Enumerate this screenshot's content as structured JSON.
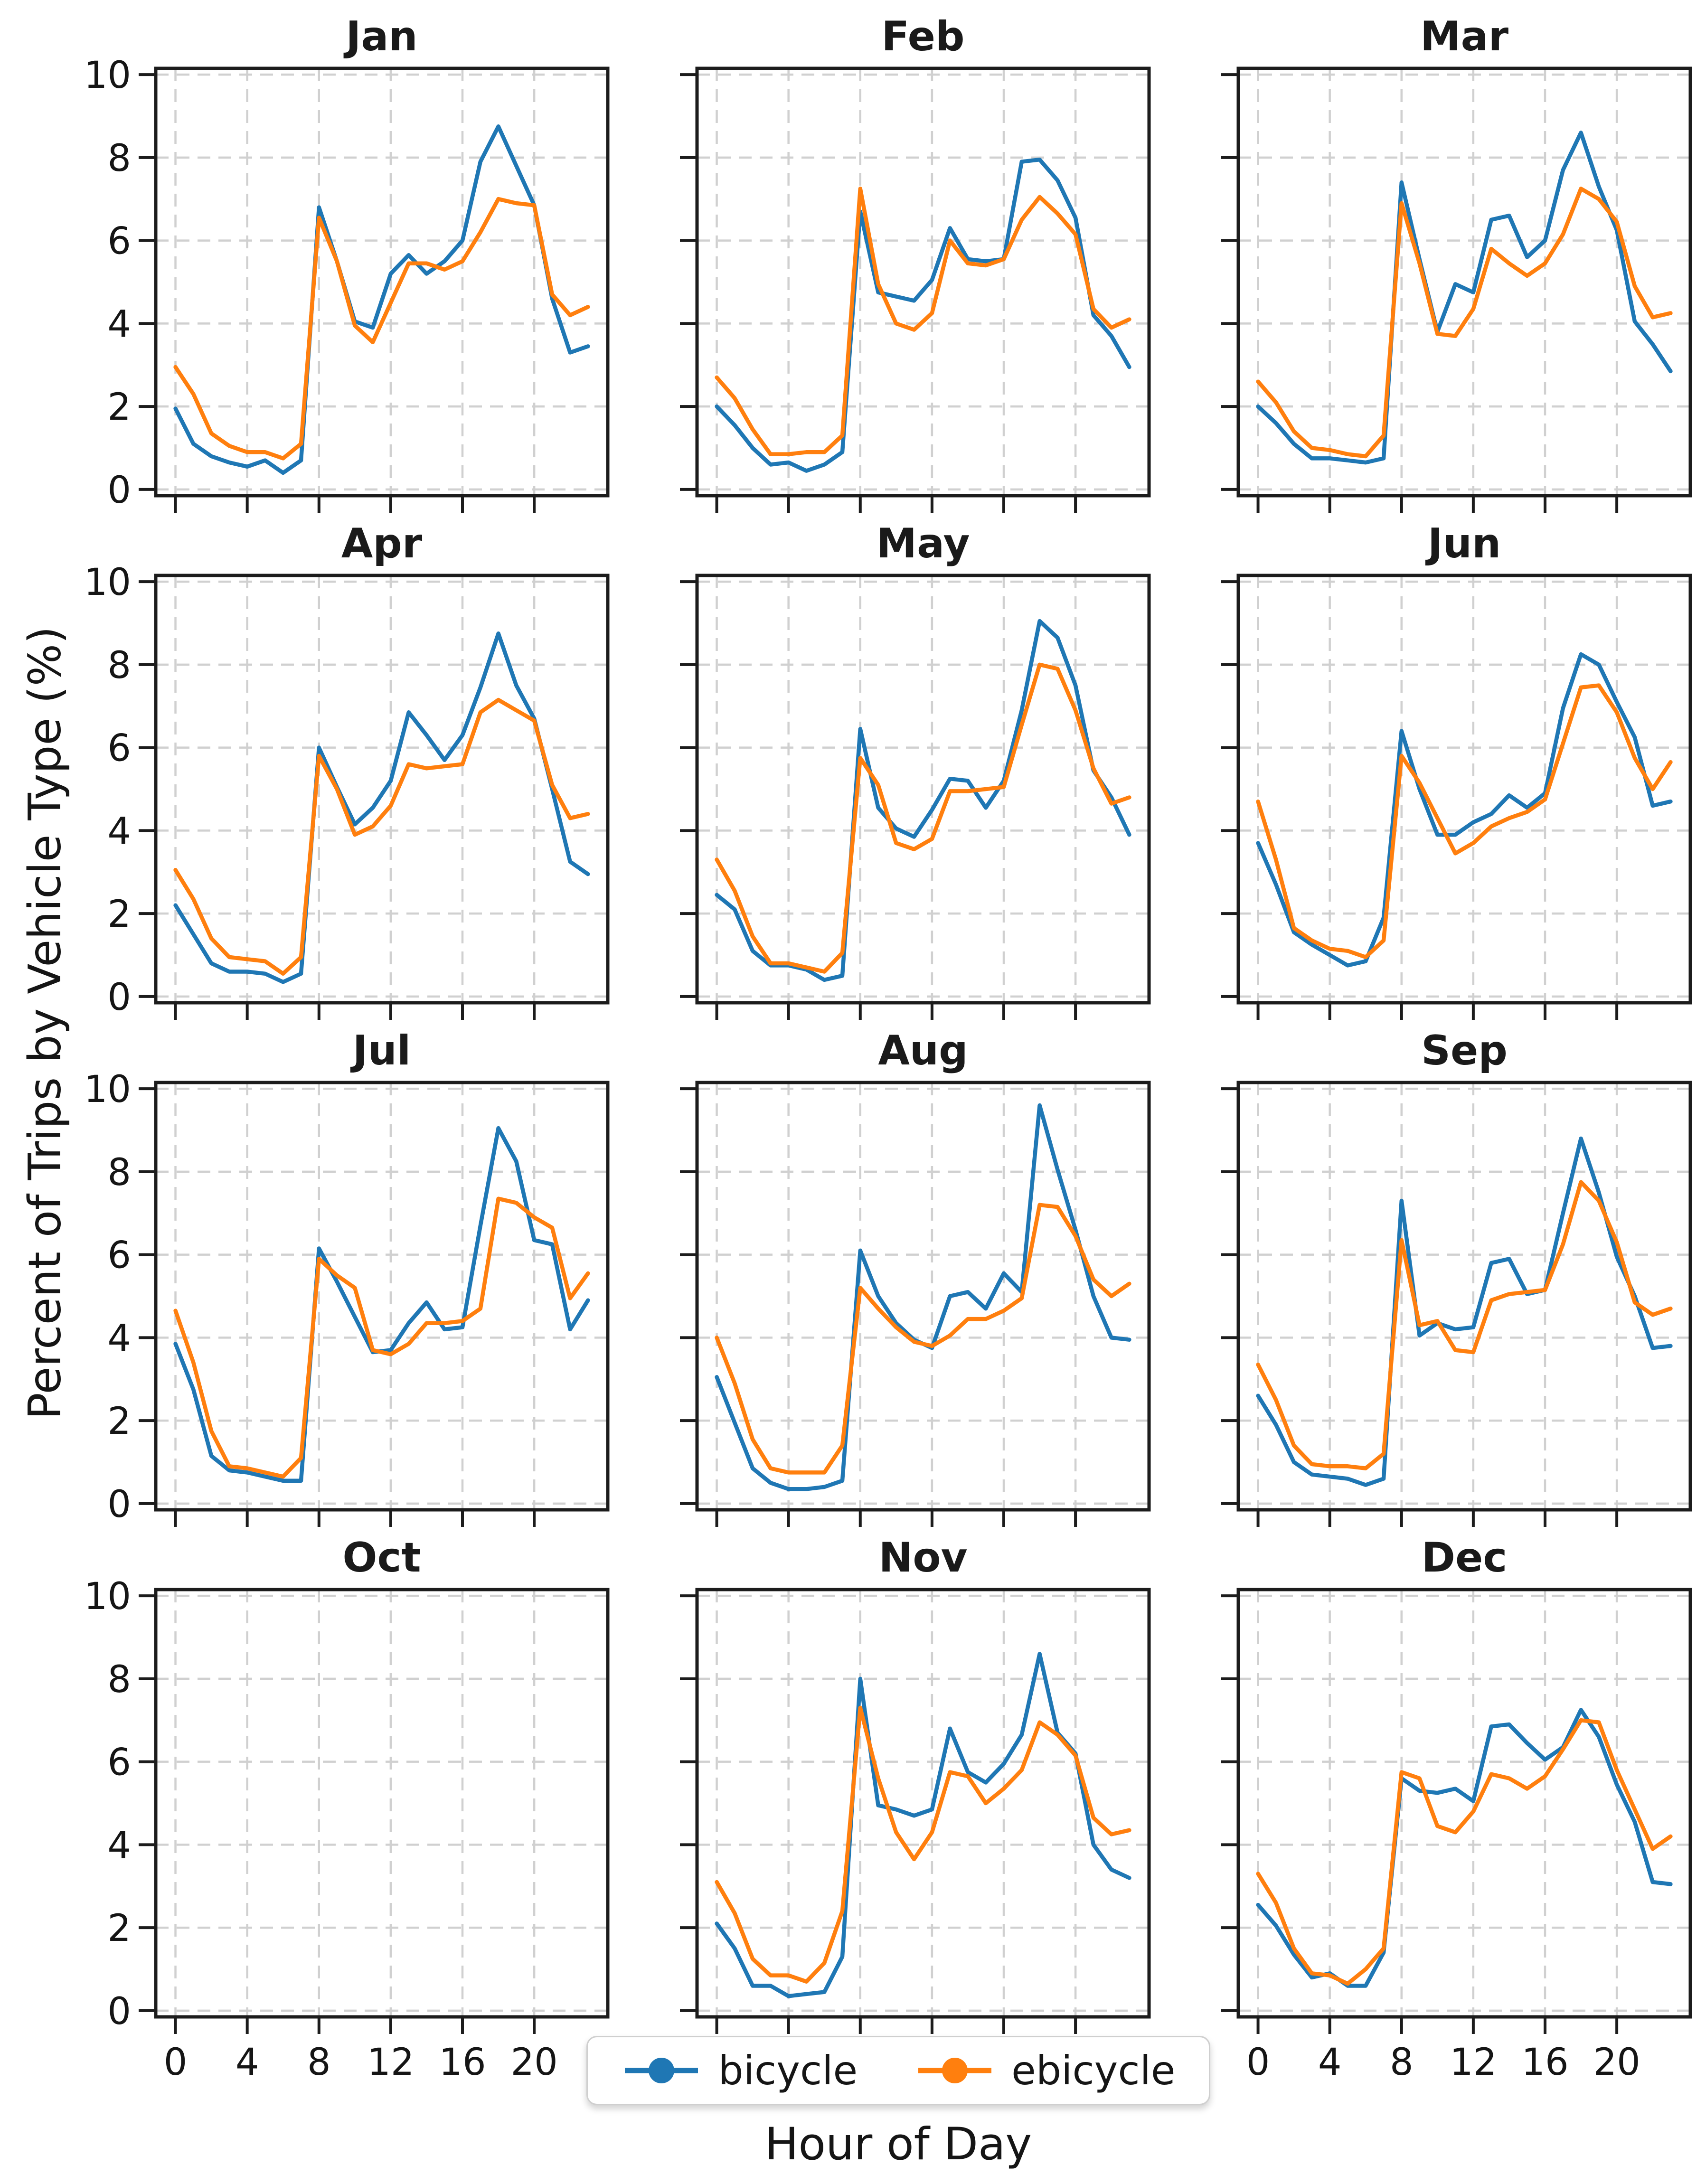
{
  "figure": {
    "ylabel": "Percent of Trips by Vehicle Type (%)",
    "xlabel": "Hour of Day",
    "legend": [
      {
        "label": "bicycle",
        "color": "#1f77b4"
      },
      {
        "label": "ebicycle",
        "color": "#ff7f0e"
      }
    ]
  },
  "chart_data": {
    "type": "line",
    "title": "",
    "xlabel": "Hour of Day",
    "ylabel": "Percent of Trips by Vehicle Type (%)",
    "layout": {
      "rows": 4,
      "cols": 3,
      "shared_x": true,
      "shared_y": true,
      "grid": "dashed",
      "legend_position": "bottom-center"
    },
    "x": [
      0,
      1,
      2,
      3,
      4,
      5,
      6,
      7,
      8,
      9,
      10,
      11,
      12,
      13,
      14,
      15,
      16,
      17,
      18,
      19,
      20,
      21,
      22,
      23
    ],
    "x_ticks": [
      0,
      4,
      8,
      12,
      16,
      20
    ],
    "y_ticks": [
      0,
      2,
      4,
      6,
      8,
      10
    ],
    "xlim": [
      -1.1,
      24.1
    ],
    "ylim": [
      -0.15,
      10.15
    ],
    "series_names": [
      "bicycle",
      "ebicycle"
    ],
    "colors": {
      "bicycle": "#1f77b4",
      "ebicycle": "#ff7f0e"
    },
    "subplots": [
      {
        "title": "Jan",
        "series": {
          "bicycle": [
            1.95,
            1.1,
            0.8,
            0.65,
            0.55,
            0.7,
            0.4,
            0.7,
            6.8,
            5.5,
            4.05,
            3.9,
            5.2,
            5.65,
            5.2,
            5.5,
            6.0,
            7.9,
            8.75,
            7.8,
            6.85,
            4.6,
            3.3,
            3.45
          ],
          "ebicycle": [
            2.95,
            2.3,
            1.35,
            1.05,
            0.9,
            0.9,
            0.75,
            1.1,
            6.55,
            5.5,
            3.95,
            3.55,
            4.5,
            5.45,
            5.45,
            5.3,
            5.5,
            6.2,
            7.0,
            6.9,
            6.85,
            4.7,
            4.2,
            4.4
          ]
        }
      },
      {
        "title": "Feb",
        "series": {
          "bicycle": [
            2.0,
            1.55,
            1.0,
            0.6,
            0.65,
            0.45,
            0.6,
            0.9,
            6.7,
            4.75,
            4.65,
            4.55,
            5.05,
            6.3,
            5.55,
            5.5,
            5.55,
            7.9,
            7.95,
            7.45,
            6.55,
            4.2,
            3.7,
            2.95
          ],
          "ebicycle": [
            2.7,
            2.2,
            1.45,
            0.85,
            0.85,
            0.9,
            0.9,
            1.3,
            7.25,
            4.95,
            4.0,
            3.85,
            4.25,
            6.0,
            5.45,
            5.4,
            5.55,
            6.5,
            7.05,
            6.65,
            6.15,
            4.35,
            3.9,
            4.1
          ]
        }
      },
      {
        "title": "Mar",
        "series": {
          "bicycle": [
            2.0,
            1.6,
            1.1,
            0.75,
            0.75,
            0.7,
            0.65,
            0.75,
            7.4,
            5.55,
            3.8,
            4.95,
            4.75,
            6.5,
            6.6,
            5.6,
            6.0,
            7.7,
            8.6,
            7.3,
            6.25,
            4.05,
            3.5,
            2.85
          ],
          "ebicycle": [
            2.6,
            2.1,
            1.4,
            1.0,
            0.95,
            0.85,
            0.8,
            1.3,
            6.9,
            5.45,
            3.75,
            3.7,
            4.35,
            5.8,
            5.45,
            5.15,
            5.45,
            6.15,
            7.25,
            7.0,
            6.45,
            4.9,
            4.15,
            4.25
          ]
        }
      },
      {
        "title": "Apr",
        "series": {
          "bicycle": [
            2.2,
            1.5,
            0.8,
            0.6,
            0.6,
            0.55,
            0.35,
            0.55,
            6.0,
            5.05,
            4.15,
            4.55,
            5.2,
            6.85,
            6.3,
            5.7,
            6.3,
            7.45,
            8.75,
            7.5,
            6.7,
            5.0,
            3.25,
            2.95
          ],
          "ebicycle": [
            3.05,
            2.35,
            1.4,
            0.95,
            0.9,
            0.85,
            0.55,
            0.95,
            5.8,
            5.0,
            3.9,
            4.1,
            4.6,
            5.6,
            5.5,
            5.55,
            5.6,
            6.85,
            7.15,
            6.9,
            6.65,
            5.1,
            4.3,
            4.4
          ]
        }
      },
      {
        "title": "May",
        "series": {
          "bicycle": [
            2.45,
            2.1,
            1.1,
            0.75,
            0.75,
            0.65,
            0.4,
            0.5,
            6.45,
            4.55,
            4.05,
            3.85,
            4.5,
            5.25,
            5.2,
            4.55,
            5.2,
            6.9,
            9.05,
            8.65,
            7.5,
            5.45,
            4.8,
            3.9
          ],
          "ebicycle": [
            3.3,
            2.55,
            1.45,
            0.8,
            0.8,
            0.7,
            0.6,
            1.05,
            5.75,
            5.1,
            3.7,
            3.55,
            3.8,
            4.95,
            4.95,
            5.0,
            5.05,
            6.55,
            8.0,
            7.9,
            6.9,
            5.5,
            4.65,
            4.8
          ]
        }
      },
      {
        "title": "Jun",
        "series": {
          "bicycle": [
            3.7,
            2.7,
            1.55,
            1.25,
            1.0,
            0.75,
            0.85,
            1.9,
            6.4,
            5.0,
            3.9,
            3.9,
            4.2,
            4.4,
            4.85,
            4.55,
            4.9,
            6.95,
            8.25,
            8.0,
            7.1,
            6.25,
            4.6,
            4.7
          ],
          "ebicycle": [
            4.7,
            3.3,
            1.65,
            1.35,
            1.15,
            1.1,
            0.95,
            1.35,
            5.8,
            5.15,
            4.3,
            3.45,
            3.7,
            4.1,
            4.3,
            4.45,
            4.75,
            6.1,
            7.45,
            7.5,
            6.85,
            5.75,
            5.0,
            5.65
          ]
        }
      },
      {
        "title": "Jul",
        "series": {
          "bicycle": [
            3.85,
            2.75,
            1.15,
            0.8,
            0.75,
            0.65,
            0.55,
            0.55,
            6.15,
            5.35,
            4.5,
            3.65,
            3.7,
            4.35,
            4.85,
            4.2,
            4.25,
            6.7,
            9.05,
            8.25,
            6.35,
            6.25,
            4.2,
            4.9
          ],
          "ebicycle": [
            4.65,
            3.4,
            1.75,
            0.9,
            0.85,
            0.75,
            0.65,
            1.1,
            5.9,
            5.5,
            5.2,
            3.7,
            3.6,
            3.85,
            4.35,
            4.35,
            4.4,
            4.7,
            7.35,
            7.25,
            6.9,
            6.65,
            4.95,
            5.55
          ]
        }
      },
      {
        "title": "Aug",
        "series": {
          "bicycle": [
            3.05,
            1.95,
            0.85,
            0.5,
            0.35,
            0.35,
            0.4,
            0.55,
            6.1,
            5.0,
            4.35,
            3.95,
            3.75,
            5.0,
            5.1,
            4.7,
            5.55,
            5.1,
            9.6,
            8.05,
            6.6,
            5.0,
            4.0,
            3.95
          ],
          "ebicycle": [
            4.0,
            2.9,
            1.55,
            0.85,
            0.75,
            0.75,
            0.75,
            1.4,
            5.2,
            4.7,
            4.25,
            3.9,
            3.8,
            4.05,
            4.45,
            4.45,
            4.65,
            4.95,
            7.2,
            7.15,
            6.45,
            5.4,
            5.0,
            5.3
          ]
        }
      },
      {
        "title": "Sep",
        "series": {
          "bicycle": [
            2.6,
            1.9,
            1.0,
            0.7,
            0.65,
            0.6,
            0.45,
            0.6,
            7.3,
            4.05,
            4.35,
            4.2,
            4.25,
            5.8,
            5.9,
            5.05,
            5.15,
            7.0,
            8.8,
            7.5,
            5.95,
            5.0,
            3.75,
            3.8
          ],
          "ebicycle": [
            3.35,
            2.5,
            1.4,
            0.95,
            0.9,
            0.9,
            0.85,
            1.2,
            6.35,
            4.3,
            4.4,
            3.7,
            3.65,
            4.9,
            5.05,
            5.1,
            5.15,
            6.25,
            7.75,
            7.3,
            6.3,
            4.85,
            4.55,
            4.7
          ]
        }
      },
      {
        "title": "Oct",
        "empty": true,
        "series": {}
      },
      {
        "title": "Nov",
        "series": {
          "bicycle": [
            2.1,
            1.5,
            0.6,
            0.6,
            0.35,
            0.4,
            0.45,
            1.3,
            8.0,
            4.95,
            4.85,
            4.7,
            4.85,
            6.8,
            5.75,
            5.5,
            5.95,
            6.65,
            8.6,
            6.7,
            6.2,
            4.0,
            3.4,
            3.2
          ],
          "ebicycle": [
            3.1,
            2.35,
            1.25,
            0.85,
            0.85,
            0.7,
            1.15,
            2.4,
            7.3,
            5.6,
            4.3,
            3.65,
            4.3,
            5.75,
            5.65,
            5.0,
            5.35,
            5.8,
            6.95,
            6.65,
            6.15,
            4.65,
            4.25,
            4.35
          ]
        }
      },
      {
        "title": "Dec",
        "series": {
          "bicycle": [
            2.55,
            2.05,
            1.35,
            0.8,
            0.9,
            0.6,
            0.6,
            1.4,
            5.6,
            5.3,
            5.25,
            5.35,
            5.05,
            6.85,
            6.9,
            6.45,
            6.05,
            6.35,
            7.25,
            6.6,
            5.45,
            4.55,
            3.1,
            3.05
          ],
          "ebicycle": [
            3.3,
            2.6,
            1.5,
            0.9,
            0.85,
            0.65,
            1.0,
            1.5,
            5.75,
            5.6,
            4.45,
            4.3,
            4.8,
            5.7,
            5.6,
            5.35,
            5.65,
            6.3,
            7.0,
            6.95,
            5.8,
            4.85,
            3.9,
            4.2
          ]
        }
      }
    ]
  }
}
